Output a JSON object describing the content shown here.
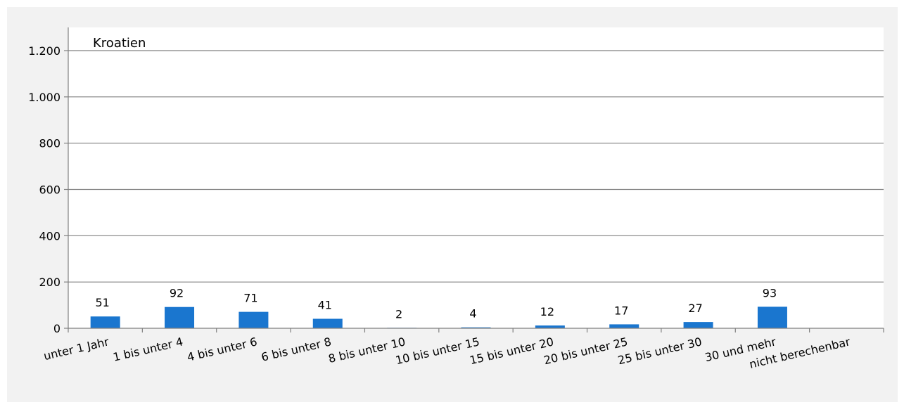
{
  "chart_data": {
    "type": "bar",
    "title": "Kroatien",
    "categories": [
      "unter 1 Jahr",
      "1 bis unter 4",
      "4 bis unter 6",
      "6 bis unter 8",
      "8 bis unter 10",
      "10 bis unter 15",
      "15 bis unter 20",
      "20 bis unter 25",
      "25 bis unter 30",
      "30 und mehr",
      "nicht berechenbar"
    ],
    "values": [
      51,
      92,
      71,
      41,
      2,
      4,
      12,
      17,
      27,
      93,
      null
    ],
    "data_labels": [
      "51",
      "92",
      "71",
      "41",
      "2",
      "4",
      "12",
      "17",
      "27",
      "93",
      ""
    ],
    "ylim": [
      0,
      1200
    ],
    "yticks": [
      0,
      200,
      400,
      600,
      800,
      1000,
      1200
    ],
    "ytick_labels": [
      "0",
      "200",
      "400",
      "600",
      "800",
      "1.000",
      "1.200"
    ],
    "xlabel": "",
    "ylabel": "",
    "grid": true,
    "bar_color": "#1a76cf",
    "grid_color": "#808080",
    "background_color": "#f2f2f2"
  }
}
